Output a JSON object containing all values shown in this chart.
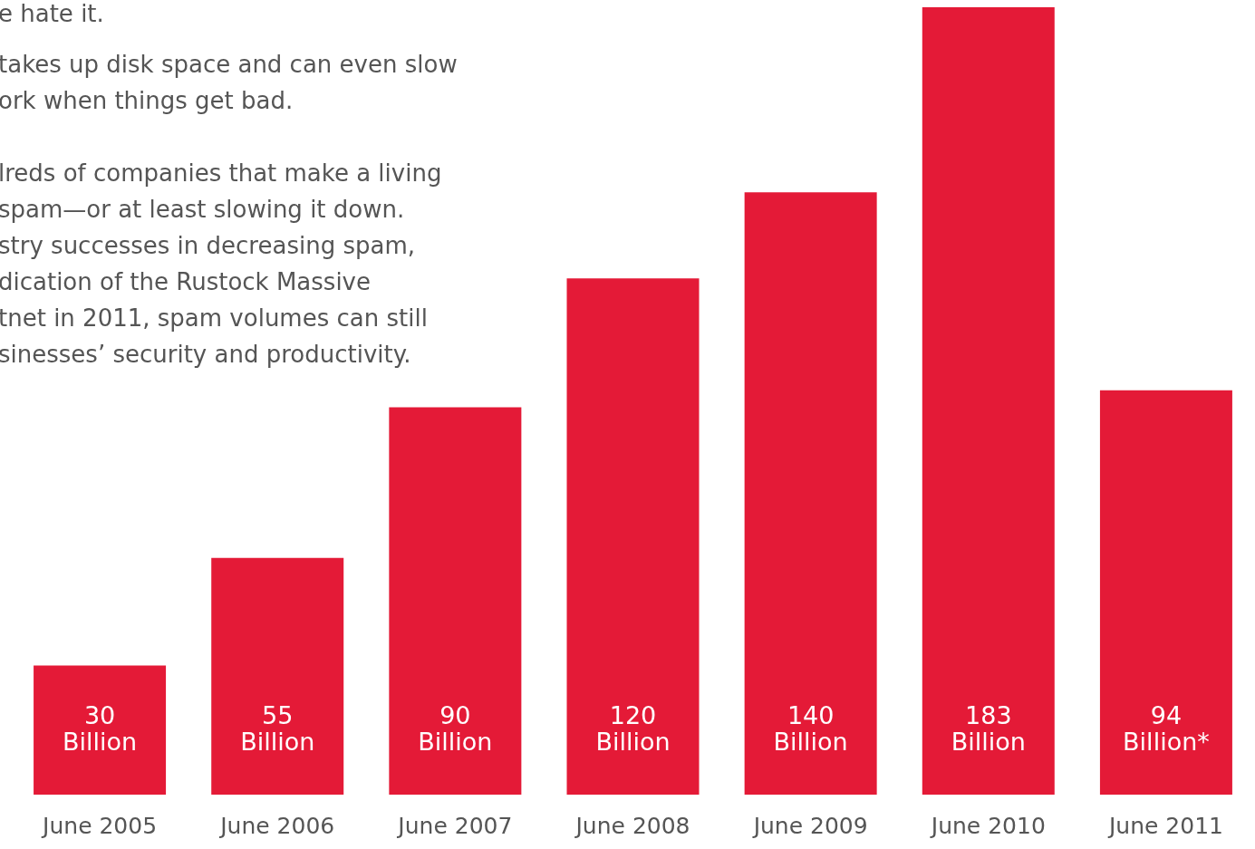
{
  "chart_data": {
    "type": "bar",
    "categories": [
      "June 2005",
      "June 2006",
      "June 2007",
      "June 2008",
      "June 2009",
      "June 2010",
      "June 2011"
    ],
    "values": [
      30,
      55,
      90,
      120,
      140,
      183,
      94
    ],
    "value_labels": [
      "30\nBillion",
      "55\nBillion",
      "90\nBillion",
      "120\nBillion",
      "140\nBillion",
      "183\nBillion",
      "94\nBillion*"
    ],
    "color": "#e41a37",
    "annotations": [
      "e hate it.",
      "takes up disk space and can even slow",
      "ork when things get bad.",
      "lreds of companies that make a living",
      "spam—or at least slowing it down.",
      "stry successes in decreasing spam,",
      "dication of the Rustock Massive",
      "tnet in 2011, spam volumes can still",
      "sinesses’ security and productivity."
    ]
  }
}
